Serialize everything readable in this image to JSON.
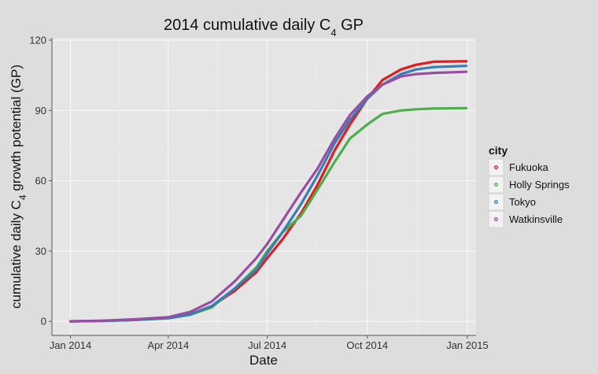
{
  "chart_data": {
    "type": "line",
    "title": {
      "main": "2014 cumulative daily C",
      "sub": "4",
      "tail": " GP"
    },
    "xlabel": "Date",
    "ylabel": {
      "main": "cumulative daily C",
      "sub": "4",
      "tail": " growth potential (GP)"
    },
    "x_ticks": [
      {
        "date": "2014-01-01",
        "label": "Jan 2014"
      },
      {
        "date": "2014-04-01",
        "label": "Apr 2014"
      },
      {
        "date": "2014-07-01",
        "label": "Jul 2014"
      },
      {
        "date": "2014-10-01",
        "label": "Oct 2014"
      },
      {
        "date": "2015-01-01",
        "label": "Jan 2015"
      }
    ],
    "y_ticks": [
      0,
      30,
      60,
      90,
      120
    ],
    "xlim": [
      "2013-12-15",
      "2015-01-09"
    ],
    "ylim": [
      -6,
      121
    ],
    "grid": true,
    "legend": {
      "title": "city",
      "placement": "right"
    },
    "series": [
      {
        "name": "Fukuoka",
        "color": "#e41a1c",
        "points": [
          [
            "2014-01-01",
            0
          ],
          [
            "2014-02-01",
            0.2
          ],
          [
            "2014-03-01",
            0.7
          ],
          [
            "2014-04-01",
            1.5
          ],
          [
            "2014-04-21",
            3
          ],
          [
            "2014-05-11",
            6.5
          ],
          [
            "2014-06-01",
            13
          ],
          [
            "2014-06-21",
            21
          ],
          [
            "2014-07-01",
            27
          ],
          [
            "2014-07-15",
            35
          ],
          [
            "2014-08-01",
            46
          ],
          [
            "2014-08-16",
            58
          ],
          [
            "2014-09-01",
            73
          ],
          [
            "2014-09-15",
            84
          ],
          [
            "2014-10-01",
            95
          ],
          [
            "2014-10-15",
            103
          ],
          [
            "2014-11-01",
            107.5
          ],
          [
            "2014-11-15",
            109.5
          ],
          [
            "2014-12-01",
            110.8
          ],
          [
            "2014-12-31",
            111
          ]
        ]
      },
      {
        "name": "Holly Springs",
        "color": "#4daf4a",
        "points": [
          [
            "2014-01-01",
            0
          ],
          [
            "2014-02-01",
            0.2
          ],
          [
            "2014-03-01",
            0.6
          ],
          [
            "2014-04-01",
            1.3
          ],
          [
            "2014-04-21",
            2.8
          ],
          [
            "2014-05-11",
            6
          ],
          [
            "2014-06-01",
            14
          ],
          [
            "2014-06-21",
            23
          ],
          [
            "2014-07-01",
            30
          ],
          [
            "2014-07-15",
            38
          ],
          [
            "2014-08-01",
            45
          ],
          [
            "2014-08-16",
            56
          ],
          [
            "2014-09-01",
            68
          ],
          [
            "2014-09-15",
            78
          ],
          [
            "2014-10-01",
            84
          ],
          [
            "2014-10-15",
            88.5
          ],
          [
            "2014-11-01",
            90
          ],
          [
            "2014-11-15",
            90.5
          ],
          [
            "2014-12-01",
            90.8
          ],
          [
            "2014-12-31",
            91
          ]
        ]
      },
      {
        "name": "Tokyo",
        "color": "#377eb8",
        "points": [
          [
            "2014-01-01",
            0
          ],
          [
            "2014-02-01",
            0.2
          ],
          [
            "2014-03-01",
            0.6
          ],
          [
            "2014-04-01",
            1.4
          ],
          [
            "2014-04-21",
            2.9
          ],
          [
            "2014-05-11",
            6.5
          ],
          [
            "2014-06-01",
            14
          ],
          [
            "2014-06-21",
            22
          ],
          [
            "2014-07-01",
            29
          ],
          [
            "2014-07-15",
            38
          ],
          [
            "2014-08-01",
            50
          ],
          [
            "2014-08-16",
            62
          ],
          [
            "2014-09-01",
            76
          ],
          [
            "2014-09-15",
            86
          ],
          [
            "2014-10-01",
            95
          ],
          [
            "2014-10-15",
            101
          ],
          [
            "2014-11-01",
            105.5
          ],
          [
            "2014-11-15",
            107.5
          ],
          [
            "2014-12-01",
            108.5
          ],
          [
            "2014-12-31",
            109
          ]
        ]
      },
      {
        "name": "Watkinsville",
        "color": "#984ea3",
        "points": [
          [
            "2014-01-01",
            0
          ],
          [
            "2014-02-01",
            0.3
          ],
          [
            "2014-03-01",
            0.9
          ],
          [
            "2014-04-01",
            1.8
          ],
          [
            "2014-04-21",
            4
          ],
          [
            "2014-05-11",
            8.5
          ],
          [
            "2014-06-01",
            17
          ],
          [
            "2014-06-21",
            27
          ],
          [
            "2014-07-01",
            33
          ],
          [
            "2014-07-15",
            43
          ],
          [
            "2014-08-01",
            55
          ],
          [
            "2014-08-16",
            65
          ],
          [
            "2014-09-01",
            78
          ],
          [
            "2014-09-15",
            88
          ],
          [
            "2014-10-01",
            96
          ],
          [
            "2014-10-15",
            101
          ],
          [
            "2014-11-01",
            104.5
          ],
          [
            "2014-11-15",
            105.5
          ],
          [
            "2014-12-01",
            106
          ],
          [
            "2014-12-31",
            106.5
          ]
        ]
      }
    ]
  }
}
